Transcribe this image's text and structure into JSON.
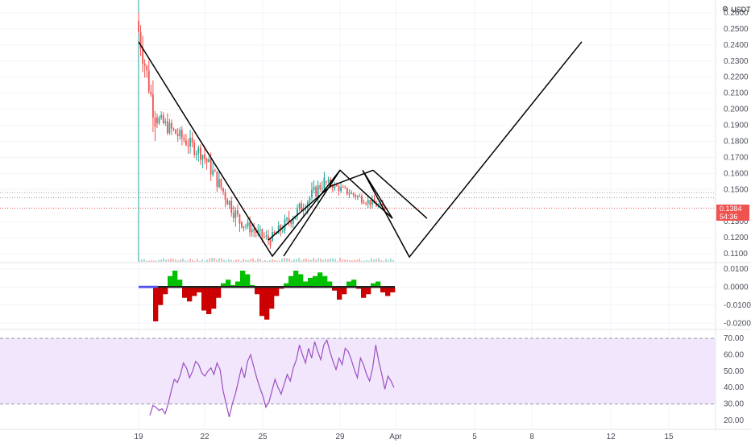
{
  "header": {
    "currency": "USDT",
    "menu_icon": "sliders-icon"
  },
  "price_badge": {
    "price": "0.1384",
    "countdown": "54:36"
  },
  "colors": {
    "up": "#26a69a",
    "down": "#ef5350",
    "drawing": "#000000",
    "macd_pos": "#00c000",
    "macd_neg": "#cc0000",
    "macd_zero_start": "#5555ee",
    "rsi_line": "#9c4fc4",
    "rsi_band": "#f1e6fb",
    "badge": "#ef5350",
    "grid": "#f0f3fa"
  },
  "chart_data": [
    {
      "type": "candlestick",
      "y_ticks": [
        "0.2600",
        "0.2500",
        "0.2400",
        "0.2300",
        "0.2200",
        "0.2100",
        "0.2000",
        "0.1900",
        "0.1800",
        "0.1700",
        "0.1600",
        "0.1500",
        "0.1300",
        "0.1200",
        "0.1100"
      ],
      "ylim": [
        0.105,
        0.268
      ],
      "x_ticks": [
        "19",
        "22",
        "25",
        "29",
        "Apr",
        "5",
        "8",
        "12",
        "15"
      ],
      "ohlc_segments": [
        {
          "from": "19",
          "to": "20",
          "open": 0.255,
          "close": 0.195,
          "high": 0.266,
          "low": 0.18
        },
        {
          "from": "20",
          "to": "22",
          "open": 0.195,
          "close": 0.172,
          "high": 0.205,
          "low": 0.155
        },
        {
          "from": "22",
          "to": "24",
          "open": 0.172,
          "close": 0.13,
          "high": 0.182,
          "low": 0.128
        },
        {
          "from": "24",
          "to": "25.5",
          "open": 0.13,
          "close": 0.118,
          "high": 0.15,
          "low": 0.112
        },
        {
          "from": "25.5",
          "to": "28.5",
          "open": 0.118,
          "close": 0.155,
          "high": 0.162,
          "low": 0.115
        },
        {
          "from": "28.5",
          "to": "31",
          "open": 0.155,
          "close": 0.138,
          "high": 0.16,
          "low": 0.132
        }
      ],
      "current_price": 0.1384,
      "horizontal_lines": [
        0.148,
        0.1448,
        0.1384
      ],
      "drawn_pattern": {
        "description": "hand-drawn zigzag projection",
        "points": [
          {
            "x": "19",
            "y": 0.242
          },
          {
            "x": "25.5",
            "y": 0.1085
          },
          {
            "x": "29",
            "y": 0.162
          },
          {
            "x": "31.2",
            "y": 0.132
          },
          {
            "x": "30.5",
            "y": 0.162
          },
          {
            "x": "Apr 2",
            "y": 0.108
          },
          {
            "x": "Apr 9",
            "y": 0.242
          }
        ]
      }
    },
    {
      "type": "histogram",
      "name": "MACD",
      "y_ticks": [
        "0.0100",
        "0.0000",
        "-0.0100",
        "-0.0200"
      ],
      "ylim": [
        -0.023,
        0.013
      ],
      "values": [
        0.0,
        0.0,
        0.0,
        -0.019,
        -0.01,
        -0.004,
        0.006,
        0.009,
        0.004,
        -0.006,
        -0.008,
        -0.005,
        -0.003,
        -0.013,
        -0.015,
        -0.012,
        -0.006,
        0.002,
        0.004,
        0.001,
        0.003,
        0.009,
        0.007,
        0.001,
        -0.004,
        -0.016,
        -0.018,
        -0.012,
        -0.005,
        -0.001,
        0.002,
        0.006,
        0.009,
        0.007,
        0.003,
        0.005,
        0.006,
        0.008,
        0.006,
        0.003,
        -0.002,
        -0.007,
        -0.004,
        0.003,
        0.004,
        -0.001,
        -0.006,
        -0.004,
        0.002,
        0.003,
        -0.003,
        -0.005,
        -0.003
      ]
    },
    {
      "type": "line",
      "name": "RSI",
      "y_ticks": [
        "70.00",
        "60.00",
        "50.00",
        "40.00",
        "30.00",
        "20.00"
      ],
      "ylim": [
        15,
        75
      ],
      "band": [
        30,
        70
      ],
      "values": [
        23,
        29,
        28,
        26,
        27,
        24,
        30,
        38,
        45,
        43,
        48,
        55,
        52,
        46,
        50,
        56,
        54,
        49,
        47,
        50,
        52,
        48,
        55,
        51,
        38,
        30,
        22,
        30,
        36,
        44,
        52,
        46,
        56,
        60,
        53,
        46,
        40,
        35,
        28,
        31,
        38,
        45,
        40,
        36,
        42,
        48,
        44,
        52,
        57,
        66,
        60,
        55,
        64,
        58,
        68,
        62,
        57,
        66,
        69,
        62,
        56,
        51,
        58,
        54,
        64,
        62,
        57,
        51,
        46,
        58,
        54,
        48,
        44,
        52,
        66,
        56,
        48,
        39,
        47,
        44,
        40
      ]
    }
  ]
}
